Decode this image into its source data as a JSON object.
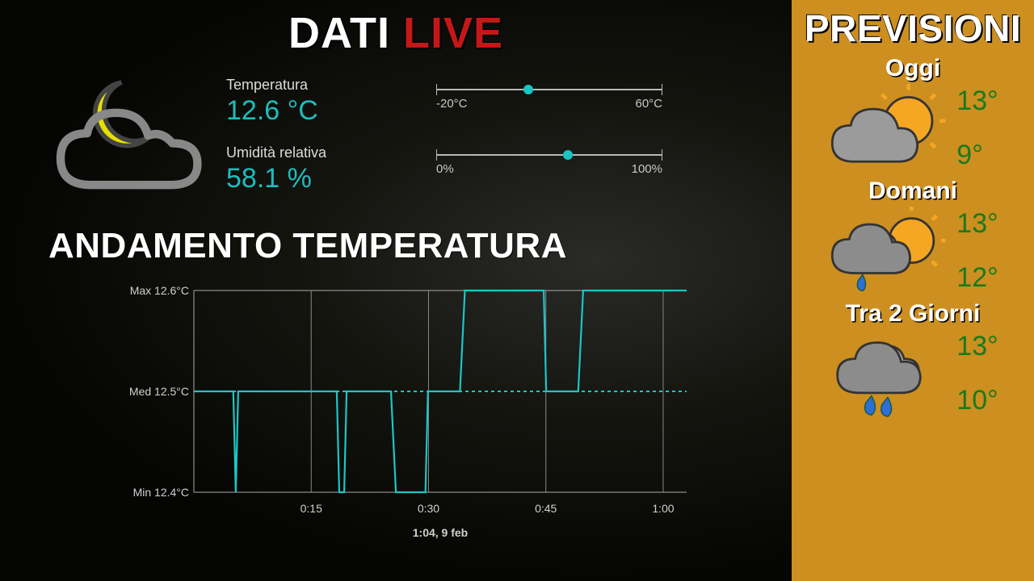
{
  "title": {
    "word1": "DATI",
    "word2": "LIVE"
  },
  "colors": {
    "accent_red": "#c41818",
    "accent_cyan": "#1dbdbd",
    "chart_line": "#1ac7c7",
    "sidebar_bg": "#cc8f20",
    "forecast_temp": "#1a7a1a",
    "text_light": "#dcdcdc"
  },
  "current": {
    "icon": "moon-cloud-icon",
    "temperature": {
      "label": "Temperatura",
      "value": "12.6 °C"
    },
    "humidity": {
      "label": "Umidità relativa",
      "value": "58.1 %"
    }
  },
  "gauges": {
    "temperature": {
      "min_label": "-20°C",
      "max_label": "60°C",
      "min": -20,
      "max": 60,
      "value": 12.6
    },
    "humidity": {
      "min_label": "0%",
      "max_label": "100%",
      "min": 0,
      "max": 100,
      "value": 58.1
    }
  },
  "chart": {
    "title": "ANDAMENTO TEMPERATURA",
    "max_label": "Max 12.6°C",
    "med_label": "Med 12.5°C",
    "min_label": "Min 12.4°C",
    "timestamp": "1:04,  9 feb",
    "x_ticks": [
      "0:15",
      "0:30",
      "0:45",
      "1:00"
    ],
    "y_max": 12.6,
    "y_med": 12.5,
    "y_min": 12.4,
    "series_x": [
      0.0,
      0.03,
      0.08,
      0.085,
      0.09,
      0.29,
      0.295,
      0.305,
      0.31,
      0.4,
      0.41,
      0.47,
      0.475,
      0.54,
      0.55,
      0.71,
      0.715,
      0.78,
      0.79,
      1.0
    ],
    "series_y": [
      12.5,
      12.5,
      12.5,
      12.4,
      12.5,
      12.5,
      12.4,
      12.4,
      12.5,
      12.5,
      12.4,
      12.4,
      12.5,
      12.5,
      12.6,
      12.6,
      12.5,
      12.5,
      12.6,
      12.6
    ],
    "line_color": "#1ac7c7",
    "grid_color": "#888888",
    "axis_color": "#aaaaaa",
    "text_color": "#d0d0d0"
  },
  "forecast": {
    "title": "PREVISIONI",
    "days": [
      {
        "label": "Oggi",
        "icon": "partly-cloudy-icon",
        "hi": "13°",
        "lo": "9°"
      },
      {
        "label": "Domani",
        "icon": "partly-cloudy-rain-icon",
        "hi": "13°",
        "lo": "12°"
      },
      {
        "label": "Tra 2 Giorni",
        "icon": "rain-icon",
        "hi": "13°",
        "lo": "10°"
      }
    ]
  }
}
